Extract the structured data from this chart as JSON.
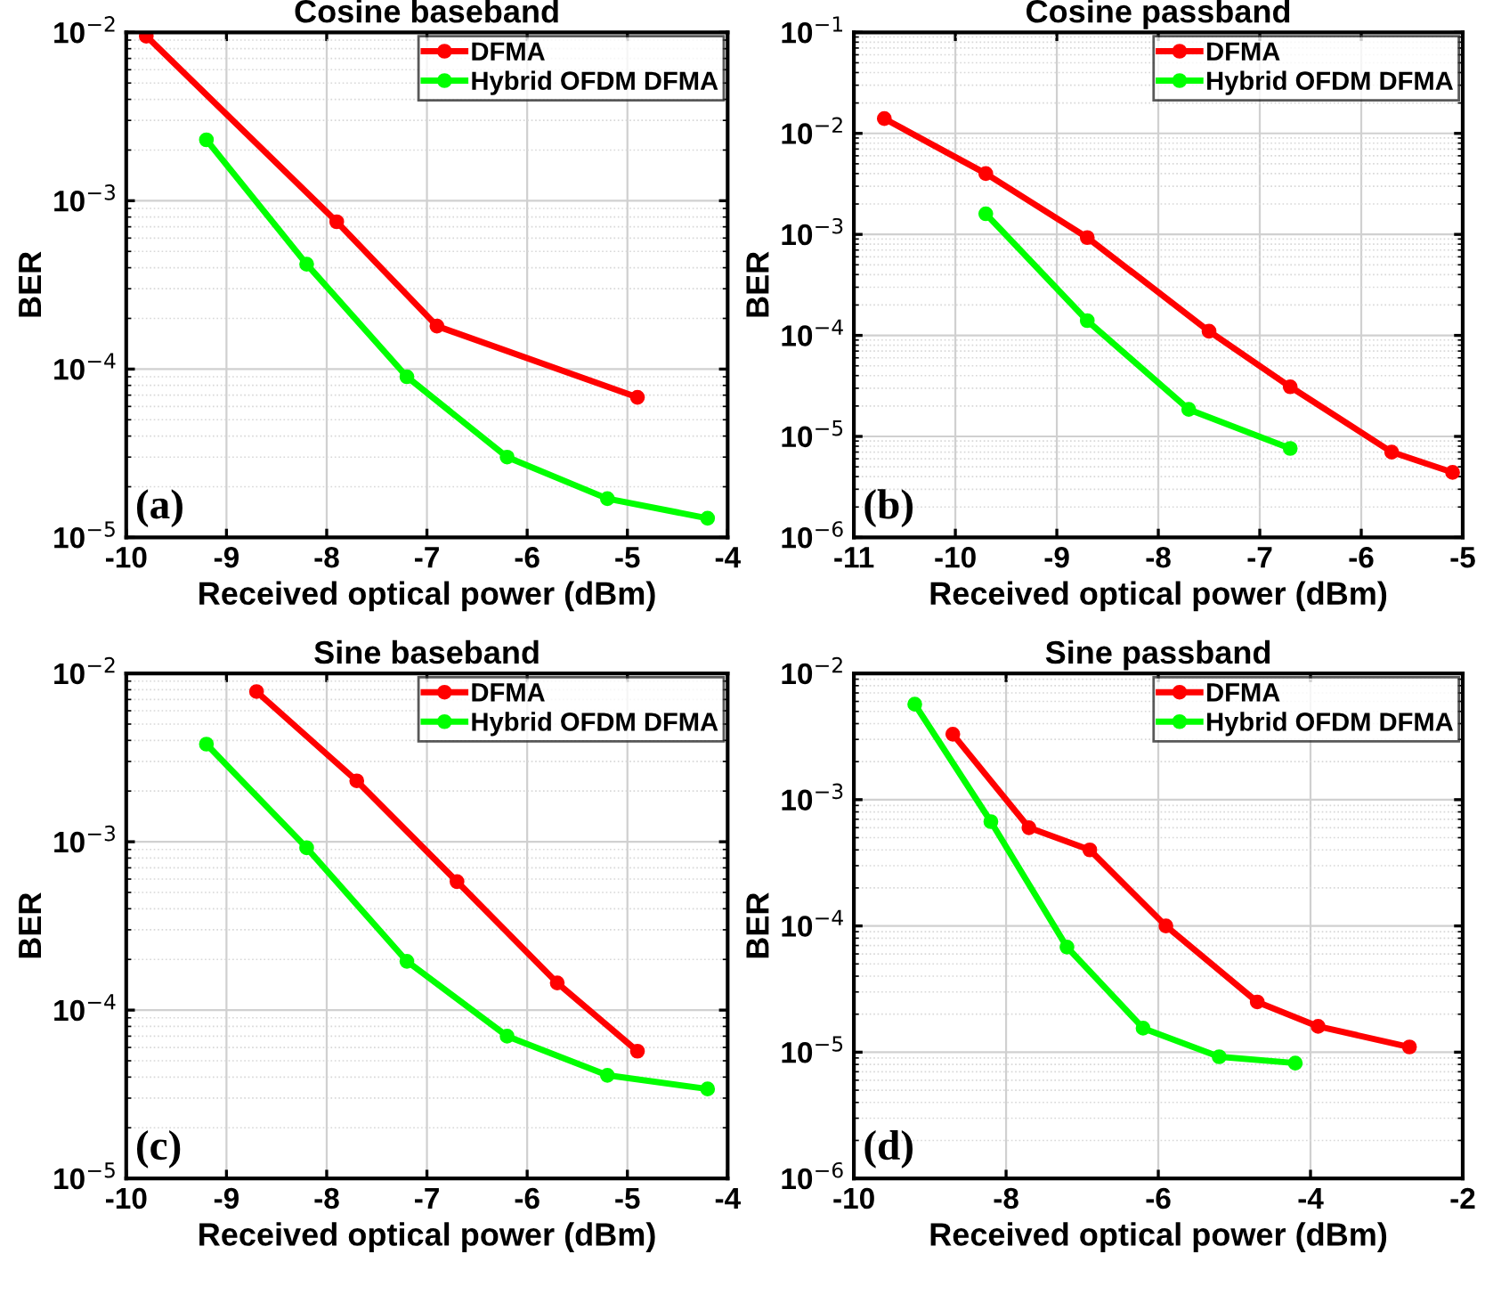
{
  "chart_data": [
    {
      "type": "line",
      "title": "Cosine baseband",
      "xlabel": "Received optical power (dBm)",
      "ylabel": "BER",
      "log": "y",
      "grid": true,
      "legend": "top right",
      "marker": "circle",
      "line_style": "solid",
      "xlim": [
        -10,
        -4
      ],
      "xticks": [
        -10,
        -9,
        -8,
        -7,
        -6,
        -5,
        -4
      ],
      "ylim": [
        1e-05,
        0.01
      ],
      "yticks": [
        {
          "value": 1e-05,
          "label": "10$^{−5}$"
        },
        {
          "value": 0.0001,
          "label": "10$^{−4}$"
        },
        {
          "value": 0.001,
          "label": "10$^{−3}$"
        },
        {
          "value": 0.01,
          "label": "10$^{−2}$"
        }
      ],
      "annotations": [
        "(a)"
      ],
      "series": [
        {
          "name": "DFMA",
          "color": "#ff0000",
          "x": [
            -9.8,
            -7.9,
            -6.9,
            -4.9
          ],
          "values": [
            0.0095,
            0.00075,
            0.00018,
            6.8e-05
          ]
        },
        {
          "name": "Hybrid OFDM DFMA",
          "color": "#00ff00",
          "x": [
            -9.2,
            -8.2,
            -7.2,
            -6.2,
            -5.2,
            -4.2
          ],
          "values": [
            0.0023,
            0.00042,
            9e-05,
            3e-05,
            1.7e-05,
            1.3e-05
          ]
        }
      ]
    },
    {
      "type": "line",
      "title": "Cosine passband",
      "xlabel": "Received optical power (dBm)",
      "ylabel": "BER",
      "log": "y",
      "grid": true,
      "legend": "top right",
      "marker": "circle",
      "line_style": "solid",
      "xlim": [
        -11,
        -5
      ],
      "xticks": [
        -11,
        -10,
        -9,
        -8,
        -7,
        -6,
        -5
      ],
      "ylim": [
        1e-06,
        0.1
      ],
      "yticks": [
        {
          "value": 1e-06,
          "label": "10$^{−6}$"
        },
        {
          "value": 1e-05,
          "label": "10$^{−5}$"
        },
        {
          "value": 0.0001,
          "label": "10$^{−4}$"
        },
        {
          "value": 0.001,
          "label": "10$^{−3}$"
        },
        {
          "value": 0.01,
          "label": "10$^{−2}$"
        },
        {
          "value": 0.1,
          "label": "10$^{−1}$"
        }
      ],
      "annotations": [
        "(b)"
      ],
      "series": [
        {
          "name": "DFMA",
          "color": "#ff0000",
          "x": [
            -10.7,
            -9.7,
            -8.7,
            -7.5,
            -6.7,
            -5.7,
            -5.1
          ],
          "values": [
            0.014,
            0.004,
            0.00093,
            0.00011,
            3.1e-05,
            7e-06,
            4.4e-06
          ]
        },
        {
          "name": "Hybrid OFDM DFMA",
          "color": "#00ff00",
          "x": [
            -9.7,
            -8.7,
            -7.7,
            -6.7
          ],
          "values": [
            0.0016,
            0.00014,
            1.85e-05,
            7.6e-06
          ]
        }
      ]
    },
    {
      "type": "line",
      "title": "Sine baseband",
      "xlabel": "Received optical power (dBm)",
      "ylabel": "BER",
      "log": "y",
      "grid": true,
      "legend": "top right",
      "marker": "circle",
      "line_style": "solid",
      "xlim": [
        -10,
        -4
      ],
      "xticks": [
        -10,
        -9,
        -8,
        -7,
        -6,
        -5,
        -4
      ],
      "ylim": [
        1e-05,
        0.01
      ],
      "yticks": [
        {
          "value": 1e-05,
          "label": "10$^{−5}$"
        },
        {
          "value": 0.0001,
          "label": "10$^{−4}$"
        },
        {
          "value": 0.001,
          "label": "10$^{−3}$"
        },
        {
          "value": 0.01,
          "label": "10$^{−2}$"
        }
      ],
      "annotations": [
        "(c)"
      ],
      "series": [
        {
          "name": "DFMA",
          "color": "#ff0000",
          "x": [
            -8.7,
            -7.7,
            -6.7,
            -5.7,
            -4.9
          ],
          "values": [
            0.0078,
            0.0023,
            0.00058,
            0.000145,
            5.7e-05
          ]
        },
        {
          "name": "Hybrid OFDM DFMA",
          "color": "#00ff00",
          "x": [
            -9.2,
            -8.2,
            -7.2,
            -6.2,
            -5.2,
            -4.2
          ],
          "values": [
            0.0038,
            0.00092,
            0.000195,
            7e-05,
            4.1e-05,
            3.4e-05
          ]
        }
      ]
    },
    {
      "type": "line",
      "title": "Sine passband",
      "xlabel": "Received optical power (dBm)",
      "ylabel": "BER",
      "log": "y",
      "grid": true,
      "legend": "top right",
      "marker": "circle",
      "line_style": "solid",
      "xlim": [
        -10,
        -2
      ],
      "xticks": [
        -10,
        -8,
        -6,
        -4,
        -2
      ],
      "ylim": [
        1e-06,
        0.01
      ],
      "yticks": [
        {
          "value": 1e-06,
          "label": "10$^{−6}$"
        },
        {
          "value": 1e-05,
          "label": "10$^{−5}$"
        },
        {
          "value": 0.0001,
          "label": "10$^{−4}$"
        },
        {
          "value": 0.001,
          "label": "10$^{−3}$"
        },
        {
          "value": 0.01,
          "label": "10$^{−2}$"
        }
      ],
      "annotations": [
        "(d)"
      ],
      "series": [
        {
          "name": "DFMA",
          "color": "#ff0000",
          "x": [
            -8.7,
            -7.7,
            -6.9,
            -5.9,
            -4.7,
            -3.9,
            -2.7
          ],
          "values": [
            0.0033,
            0.0006,
            0.0004,
            0.0001,
            2.5e-05,
            1.6e-05,
            1.1e-05
          ]
        },
        {
          "name": "Hybrid OFDM DFMA",
          "color": "#00ff00",
          "x": [
            -9.2,
            -8.2,
            -7.2,
            -6.2,
            -5.2,
            -4.2
          ],
          "values": [
            0.0057,
            0.00067,
            6.8e-05,
            1.55e-05,
            9.2e-06,
            8.2e-06
          ]
        }
      ]
    }
  ]
}
